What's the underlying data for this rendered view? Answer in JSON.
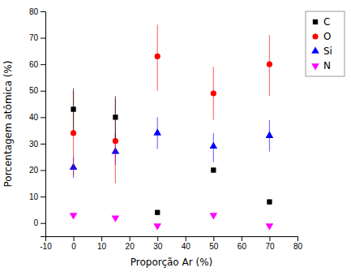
{
  "chart_data": {
    "type": "scatter",
    "x_label": "Proporção Ar (%)",
    "y_label": "Porcentagem atômica (%)",
    "x": [
      0,
      15,
      30,
      50,
      70
    ],
    "series": [
      {
        "name": "C",
        "color": "black",
        "marker": "square",
        "values": [
          43,
          40,
          4,
          20,
          8
        ],
        "error_plus": [
          8,
          8,
          1,
          1,
          1
        ],
        "error_minus": [
          8,
          8,
          1,
          1,
          1
        ]
      },
      {
        "name": "O",
        "color": "red",
        "marker": "circle",
        "values": [
          34,
          31,
          63,
          49,
          60
        ],
        "error_plus": [
          16,
          16,
          12,
          10,
          11
        ],
        "error_minus": [
          16,
          16,
          13,
          10,
          12
        ]
      },
      {
        "name": "Si",
        "color": "blue",
        "marker": "triangle-up",
        "values": [
          21,
          27,
          34,
          29,
          33
        ],
        "error_plus": [
          4,
          7,
          6,
          5,
          6
        ],
        "error_minus": [
          4,
          5,
          6,
          6,
          6
        ]
      },
      {
        "name": "N",
        "color": "magenta",
        "marker": "triangle-down",
        "values": [
          3,
          2,
          -1,
          3,
          -1
        ],
        "error_plus": [
          0,
          0,
          0,
          0,
          0
        ],
        "error_minus": [
          0,
          0,
          0,
          0,
          0
        ]
      }
    ],
    "xlim": [
      -10,
      80
    ],
    "ylim": [
      -5,
      80
    ],
    "xticks": [
      -10,
      0,
      10,
      20,
      30,
      40,
      50,
      60,
      70,
      80
    ],
    "yticks": [
      0,
      10,
      20,
      30,
      40,
      50,
      60,
      70,
      80
    ],
    "grid": false,
    "legend": "right"
  }
}
